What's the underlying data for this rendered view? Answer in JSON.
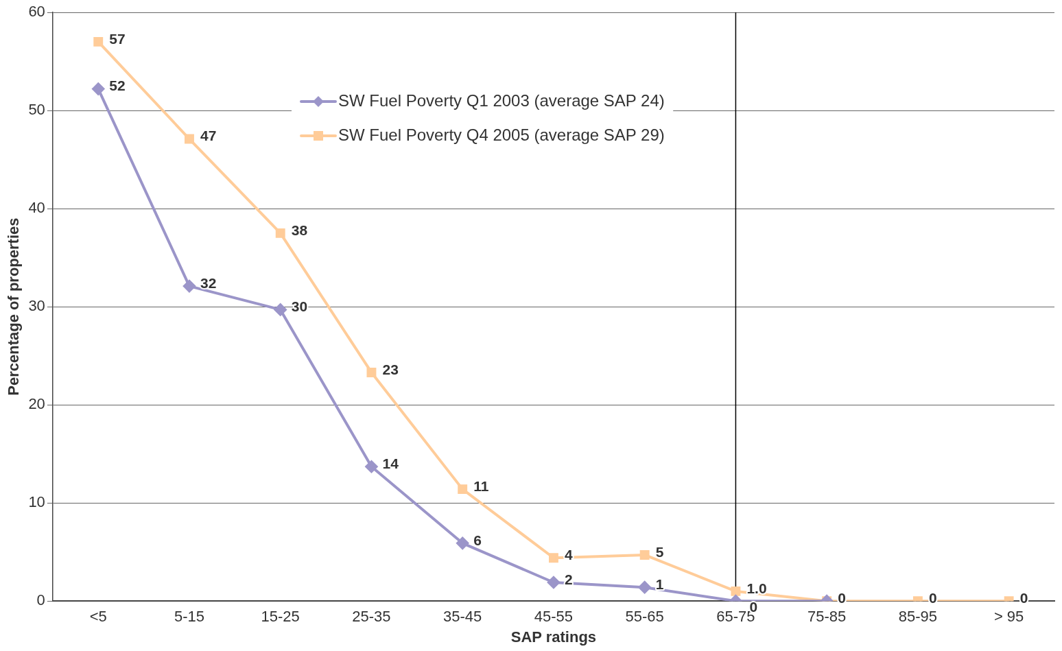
{
  "chart_data": {
    "type": "line",
    "xlabel": "SAP ratings",
    "ylabel": "Percentage of properties",
    "categories": [
      "<5",
      "5-15",
      "15-25",
      "25-35",
      "35-45",
      "45-55",
      "55-65",
      "65-75",
      "75-85",
      "85-95",
      "> 95"
    ],
    "series": [
      {
        "name": "SW Fuel Poverty Q1 2003 (average SAP 24)",
        "color": "#9b95c9",
        "marker": "diamond",
        "values": [
          52.2,
          32.1,
          29.7,
          13.7,
          5.9,
          1.9,
          1.4,
          0,
          0,
          null,
          null
        ],
        "value_labels": [
          "52",
          "32",
          "30",
          "14",
          "6",
          "2",
          "1",
          "0",
          null,
          null,
          null
        ]
      },
      {
        "name": "SW Fuel Poverty Q4 2005 (average SAP 29)",
        "color": "#ffcc99",
        "marker": "square",
        "values": [
          57,
          47.1,
          37.5,
          23.3,
          11.4,
          4.4,
          4.7,
          1.0,
          0,
          0,
          0
        ],
        "value_labels": [
          "57",
          "47",
          "38",
          "23",
          "11",
          "4",
          "5",
          "1.0",
          "0",
          "0",
          "0"
        ]
      }
    ],
    "ylim": [
      0,
      60
    ],
    "yticks": [
      0,
      10,
      20,
      30,
      40,
      50,
      60
    ],
    "grid": "y",
    "legend": "top",
    "ref_lines": [
      {
        "axis": "x",
        "value": "65-75",
        "color": "#000000"
      }
    ]
  }
}
